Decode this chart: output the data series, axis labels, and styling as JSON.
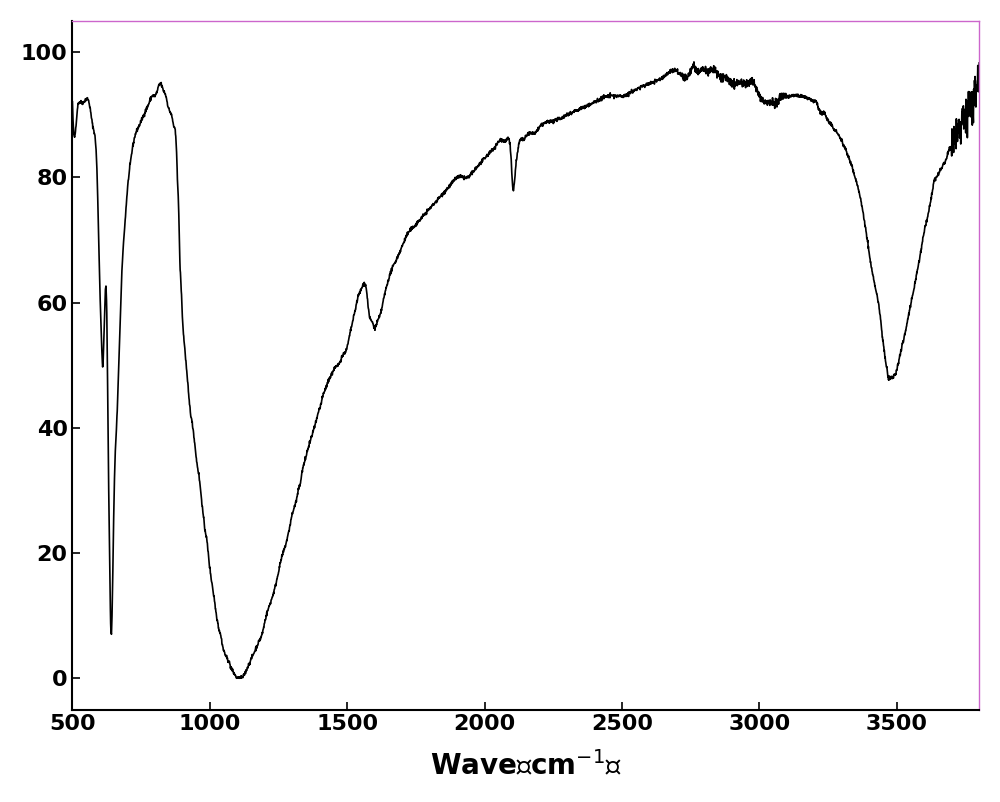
{
  "title": "",
  "xlabel": "Wave（cm⁻¹）",
  "ylabel": "",
  "xlim": [
    500,
    3800
  ],
  "ylim": [
    -5,
    105
  ],
  "xticks": [
    500,
    1000,
    1500,
    2000,
    2500,
    3000,
    3500
  ],
  "yticks": [
    0,
    20,
    40,
    60,
    80,
    100
  ],
  "line_color": "#000000",
  "background_color": "#ffffff",
  "line_width": 1.2,
  "figsize": [
    10.0,
    8.02
  ],
  "dpi": 100,
  "xlabel_fontsize": 20,
  "xlabel_fontweight": "bold",
  "tick_fontsize": 16,
  "tick_fontweight": "bold",
  "keypoints": [
    [
      500,
      92
    ],
    [
      510,
      87
    ],
    [
      518,
      91
    ],
    [
      525,
      92
    ],
    [
      540,
      92
    ],
    [
      560,
      92
    ],
    [
      575,
      88
    ],
    [
      590,
      80
    ],
    [
      600,
      62
    ],
    [
      605,
      55
    ],
    [
      610,
      50
    ],
    [
      615,
      55
    ],
    [
      620,
      62
    ],
    [
      625,
      58
    ],
    [
      630,
      38
    ],
    [
      635,
      20
    ],
    [
      638,
      11
    ],
    [
      641,
      7
    ],
    [
      645,
      12
    ],
    [
      648,
      20
    ],
    [
      652,
      30
    ],
    [
      658,
      38
    ],
    [
      665,
      45
    ],
    [
      672,
      55
    ],
    [
      680,
      65
    ],
    [
      690,
      72
    ],
    [
      700,
      78
    ],
    [
      710,
      82
    ],
    [
      720,
      85
    ],
    [
      730,
      87
    ],
    [
      740,
      88
    ],
    [
      750,
      89
    ],
    [
      760,
      90
    ],
    [
      770,
      91
    ],
    [
      780,
      92
    ],
    [
      790,
      93
    ],
    [
      800,
      93
    ],
    [
      810,
      94
    ],
    [
      820,
      95
    ],
    [
      830,
      94
    ],
    [
      840,
      93
    ],
    [
      850,
      91
    ],
    [
      860,
      90
    ],
    [
      865,
      89
    ],
    [
      870,
      88
    ],
    [
      875,
      87
    ],
    [
      878,
      85
    ],
    [
      880,
      83
    ],
    [
      882,
      80
    ],
    [
      885,
      77
    ],
    [
      888,
      72
    ],
    [
      890,
      68
    ],
    [
      895,
      63
    ],
    [
      900,
      58
    ],
    [
      910,
      52
    ],
    [
      920,
      47
    ],
    [
      930,
      43
    ],
    [
      940,
      40
    ],
    [
      950,
      36
    ],
    [
      960,
      33
    ],
    [
      970,
      29
    ],
    [
      980,
      25
    ],
    [
      990,
      22
    ],
    [
      1000,
      18
    ],
    [
      1010,
      15
    ],
    [
      1020,
      12
    ],
    [
      1030,
      9
    ],
    [
      1040,
      7
    ],
    [
      1050,
      5
    ],
    [
      1060,
      4
    ],
    [
      1070,
      3
    ],
    [
      1080,
      2
    ],
    [
      1090,
      1.5
    ],
    [
      1100,
      1
    ],
    [
      1110,
      1
    ],
    [
      1120,
      1.2
    ],
    [
      1130,
      2
    ],
    [
      1140,
      3
    ],
    [
      1150,
      4
    ],
    [
      1160,
      5
    ],
    [
      1170,
      6
    ],
    [
      1180,
      7
    ],
    [
      1190,
      8
    ],
    [
      1200,
      10
    ],
    [
      1220,
      13
    ],
    [
      1240,
      16
    ],
    [
      1260,
      20
    ],
    [
      1280,
      23
    ],
    [
      1300,
      27
    ],
    [
      1320,
      30
    ],
    [
      1340,
      34
    ],
    [
      1360,
      37
    ],
    [
      1380,
      40
    ],
    [
      1400,
      43
    ],
    [
      1420,
      46
    ],
    [
      1440,
      48
    ],
    [
      1460,
      50
    ],
    [
      1480,
      51
    ],
    [
      1490,
      52
    ],
    [
      1500,
      53
    ],
    [
      1510,
      55
    ],
    [
      1520,
      57
    ],
    [
      1530,
      59
    ],
    [
      1540,
      61
    ],
    [
      1550,
      62
    ],
    [
      1560,
      63
    ],
    [
      1570,
      62
    ],
    [
      1575,
      60
    ],
    [
      1580,
      58
    ],
    [
      1590,
      57
    ],
    [
      1600,
      56
    ],
    [
      1610,
      57
    ],
    [
      1620,
      58
    ],
    [
      1630,
      60
    ],
    [
      1640,
      62
    ],
    [
      1660,
      65
    ],
    [
      1680,
      67
    ],
    [
      1700,
      69
    ],
    [
      1720,
      71
    ],
    [
      1740,
      72
    ],
    [
      1760,
      73
    ],
    [
      1780,
      74
    ],
    [
      1800,
      75
    ],
    [
      1820,
      76
    ],
    [
      1840,
      77
    ],
    [
      1860,
      78
    ],
    [
      1880,
      79
    ],
    [
      1900,
      80
    ],
    [
      1920,
      80
    ],
    [
      1940,
      80
    ],
    [
      1960,
      81
    ],
    [
      1980,
      82
    ],
    [
      2000,
      83
    ],
    [
      2020,
      84
    ],
    [
      2040,
      85
    ],
    [
      2060,
      86
    ],
    [
      2080,
      86
    ],
    [
      2090,
      86
    ],
    [
      2095,
      84
    ],
    [
      2100,
      80
    ],
    [
      2105,
      78
    ],
    [
      2110,
      80
    ],
    [
      2120,
      84
    ],
    [
      2130,
      86
    ],
    [
      2140,
      86
    ],
    [
      2160,
      87
    ],
    [
      2180,
      87
    ],
    [
      2200,
      88
    ],
    [
      2250,
      89
    ],
    [
      2300,
      90
    ],
    [
      2350,
      91
    ],
    [
      2400,
      92
    ],
    [
      2450,
      93
    ],
    [
      2500,
      93
    ],
    [
      2550,
      94
    ],
    [
      2600,
      95
    ],
    [
      2650,
      96
    ],
    [
      2700,
      97
    ],
    [
      2750,
      97
    ],
    [
      2760,
      98
    ],
    [
      2770,
      97
    ],
    [
      2780,
      97
    ],
    [
      2800,
      97
    ],
    [
      2820,
      97
    ],
    [
      2840,
      97
    ],
    [
      2860,
      96
    ],
    [
      2880,
      96
    ],
    [
      2900,
      95
    ],
    [
      2920,
      95
    ],
    [
      2940,
      95
    ],
    [
      2960,
      95
    ],
    [
      2980,
      95
    ],
    [
      2990,
      94
    ],
    [
      3000,
      93
    ],
    [
      3020,
      92
    ],
    [
      3040,
      92
    ],
    [
      3060,
      92
    ],
    [
      3080,
      93
    ],
    [
      3100,
      93
    ],
    [
      3120,
      93
    ],
    [
      3150,
      93
    ],
    [
      3200,
      92
    ],
    [
      3250,
      89
    ],
    [
      3300,
      85
    ],
    [
      3350,
      79
    ],
    [
      3380,
      73
    ],
    [
      3400,
      67
    ],
    [
      3420,
      62
    ],
    [
      3440,
      57
    ],
    [
      3450,
      53
    ],
    [
      3460,
      50
    ],
    [
      3470,
      48
    ],
    [
      3480,
      48
    ],
    [
      3490,
      48
    ],
    [
      3500,
      49
    ],
    [
      3510,
      51
    ],
    [
      3520,
      53
    ],
    [
      3540,
      57
    ],
    [
      3560,
      62
    ],
    [
      3580,
      67
    ],
    [
      3600,
      72
    ],
    [
      3620,
      76
    ],
    [
      3640,
      80
    ],
    [
      3660,
      82
    ],
    [
      3680,
      83
    ],
    [
      3690,
      84
    ],
    [
      3700,
      85
    ],
    [
      3710,
      86
    ],
    [
      3720,
      87
    ],
    [
      3730,
      88
    ],
    [
      3740,
      89
    ],
    [
      3750,
      90
    ],
    [
      3760,
      91
    ],
    [
      3770,
      92
    ],
    [
      3780,
      93
    ],
    [
      3790,
      94
    ],
    [
      3800,
      96
    ]
  ]
}
